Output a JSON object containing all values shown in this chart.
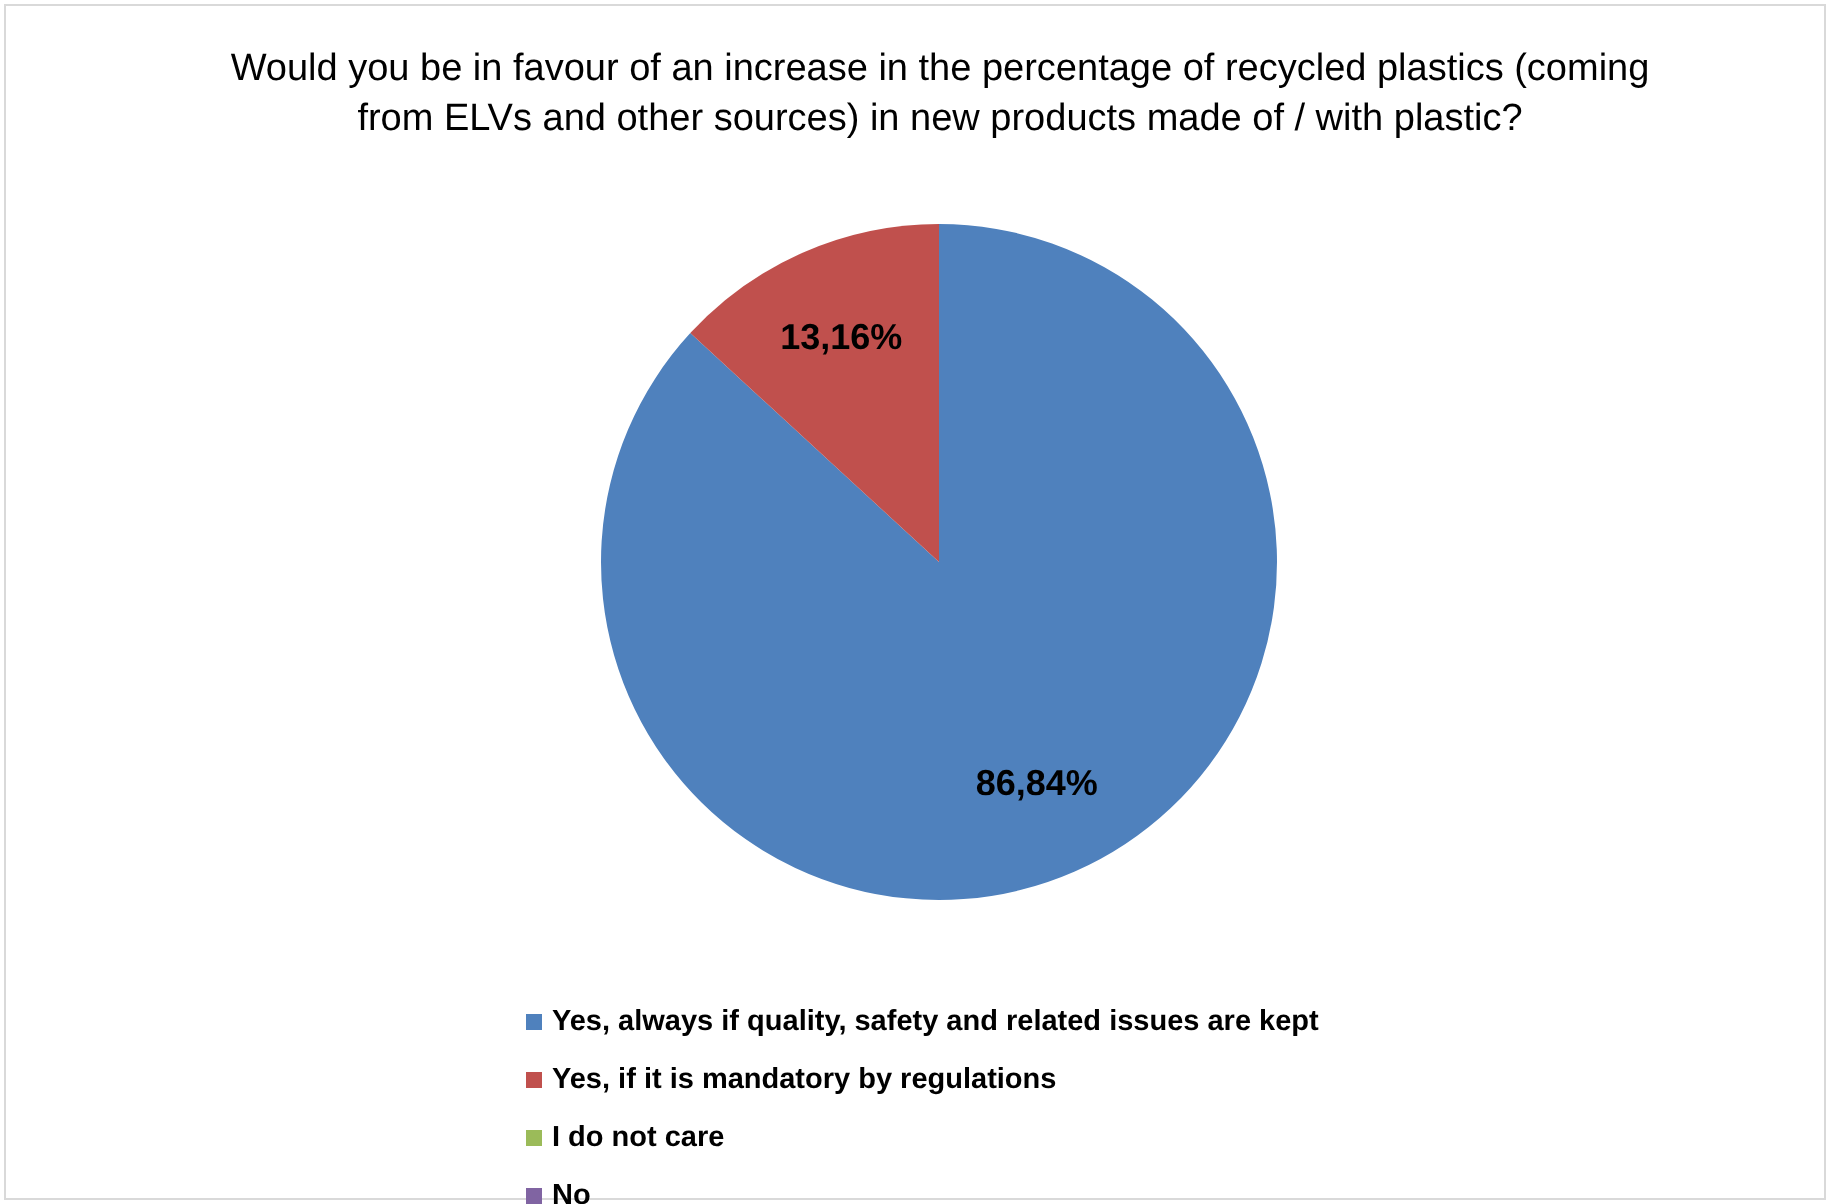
{
  "chart_data": {
    "type": "pie",
    "title": "Would you be in favour of an increase in the percentage of recycled plastics (coming from ELVs and other sources) in new products made of / with plastic?",
    "categories": [
      "Yes, always if quality, safety and related issues are kept",
      "Yes, if it is mandatory by regulations",
      "I do not care",
      "No"
    ],
    "values": [
      86.84,
      13.16,
      0,
      0
    ],
    "colors": [
      "#4f81bd",
      "#c0504d",
      "#9bbb59",
      "#8064a2"
    ],
    "value_labels": [
      "86,84%",
      "13,16%",
      null,
      null
    ],
    "legend": "bottom"
  }
}
